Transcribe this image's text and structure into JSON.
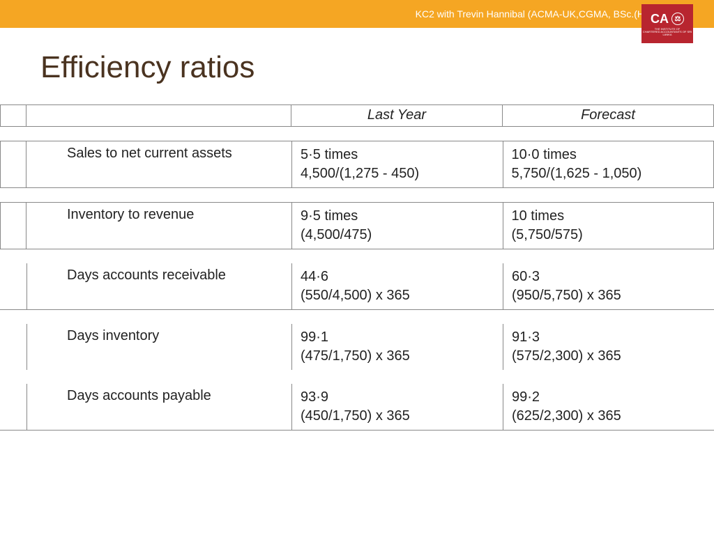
{
  "header": {
    "tagline": "KC2 with Trevin Hannibal (ACMA-UK,CGMA, BSc.(Hons), MBA)",
    "logo_text": "CA",
    "logo_icon_glyph": "⚖"
  },
  "title": "Efficiency ratios",
  "columns": {
    "c1": "Last Year",
    "c2": "Forecast"
  },
  "rows": [
    {
      "label": "Sales to net current assets",
      "last": "5·5 times\n4,500/(1,275 - 450)",
      "fore": "10·0 times\n5,750/(1,625 - 1,050)",
      "style": "boxed"
    },
    {
      "label": "Inventory to revenue",
      "last": "9·5 times\n(4,500/475)",
      "fore": "10 times\n(5,750/575)",
      "style": "boxed"
    },
    {
      "label": "Days accounts receivable",
      "last": "44·6\n(550/4,500) x 365",
      "fore": "60·3\n(950/5,750) x 365",
      "style": "uline"
    },
    {
      "label": "Days inventory",
      "last": "99·1\n(475/1,750) x 365",
      "fore": "91·3\n(575/2,300) x 365",
      "style": "plain"
    },
    {
      "label": "Days accounts payable",
      "last": "93·9\n(450/1,750) x 365",
      "fore": "99·2\n(625/2,300) x 365",
      "style": "uline"
    }
  ],
  "colors": {
    "accent": "#f5a623",
    "logo_bg": "#b8252f",
    "title": "#4a3320",
    "border": "#888888",
    "text": "#222222",
    "bg": "#ffffff"
  },
  "typography": {
    "title_fontsize": 44,
    "header_fontsize": 20,
    "body_fontsize": 20,
    "header_italic": true
  }
}
